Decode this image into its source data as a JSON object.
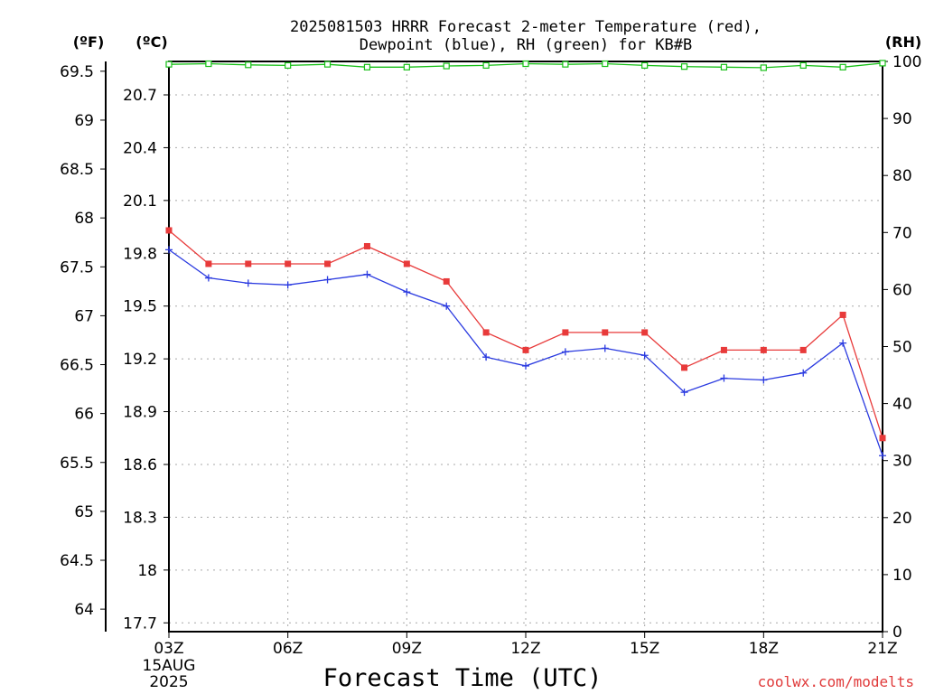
{
  "colors": {
    "temperature": "#e83a3a",
    "dewpoint": "#2a3ae0",
    "rh": "#16c016",
    "grid": "#a8a8a8",
    "credit": "#e03a3a"
  },
  "chart_data": {
    "type": "line",
    "title_lines": [
      "2025081503 HRRR Forecast 2-meter Temperature (red),",
      "Dewpoint (blue), RH (green) for KB#B"
    ],
    "units": {
      "fahrenheit": "(ºF)",
      "celsius": "(ºC)",
      "rh": "(RH)"
    },
    "xlabel": "Forecast Time (UTC)",
    "x": [
      "03Z",
      "04Z",
      "05Z",
      "06Z",
      "07Z",
      "08Z",
      "09Z",
      "10Z",
      "11Z",
      "12Z",
      "13Z",
      "14Z",
      "15Z",
      "16Z",
      "17Z",
      "18Z",
      "19Z",
      "20Z",
      "21Z"
    ],
    "x_ticks": [
      "03Z",
      "06Z",
      "09Z",
      "12Z",
      "15Z",
      "18Z",
      "21Z"
    ],
    "x_date_label": [
      "15AUG",
      "2025"
    ],
    "celsius_axis": {
      "range": [
        17.65,
        20.89
      ],
      "ticks": [
        "17.7",
        "18",
        "18.3",
        "18.6",
        "18.9",
        "19.2",
        "19.5",
        "19.8",
        "20.1",
        "20.4",
        "20.7"
      ]
    },
    "fahrenheit_axis": {
      "range": [
        63.77,
        69.6
      ],
      "ticks": [
        "64",
        "64.5",
        "65",
        "65.5",
        "66",
        "66.5",
        "67",
        "67.5",
        "68",
        "68.5",
        "69",
        "69.5"
      ]
    },
    "rh_axis": {
      "range": [
        0,
        100
      ],
      "ticks": [
        "0",
        "10",
        "20",
        "30",
        "40",
        "50",
        "60",
        "70",
        "80",
        "90",
        "100"
      ]
    },
    "series": [
      {
        "name": "Temperature",
        "axis": "celsius",
        "marker": "filled-square",
        "values": [
          19.93,
          19.74,
          19.74,
          19.74,
          19.74,
          19.84,
          19.74,
          19.64,
          19.35,
          19.25,
          19.35,
          19.35,
          19.35,
          19.15,
          19.25,
          19.25,
          19.25,
          19.45,
          18.75
        ]
      },
      {
        "name": "Dewpoint",
        "axis": "celsius",
        "marker": "plus",
        "values": [
          19.82,
          19.66,
          19.63,
          19.62,
          19.65,
          19.68,
          19.58,
          19.5,
          19.21,
          19.16,
          19.24,
          19.26,
          19.22,
          19.01,
          19.09,
          19.08,
          19.12,
          19.29,
          18.65
        ]
      },
      {
        "name": "RH",
        "axis": "rh",
        "marker": "open-square",
        "values": [
          99.5,
          99.6,
          99.4,
          99.3,
          99.5,
          99.0,
          99.0,
          99.2,
          99.3,
          99.6,
          99.5,
          99.6,
          99.3,
          99.1,
          99.0,
          98.9,
          99.3,
          99.0,
          99.7
        ]
      }
    ],
    "grid": true,
    "credit": "coolwx.com/modelts"
  }
}
